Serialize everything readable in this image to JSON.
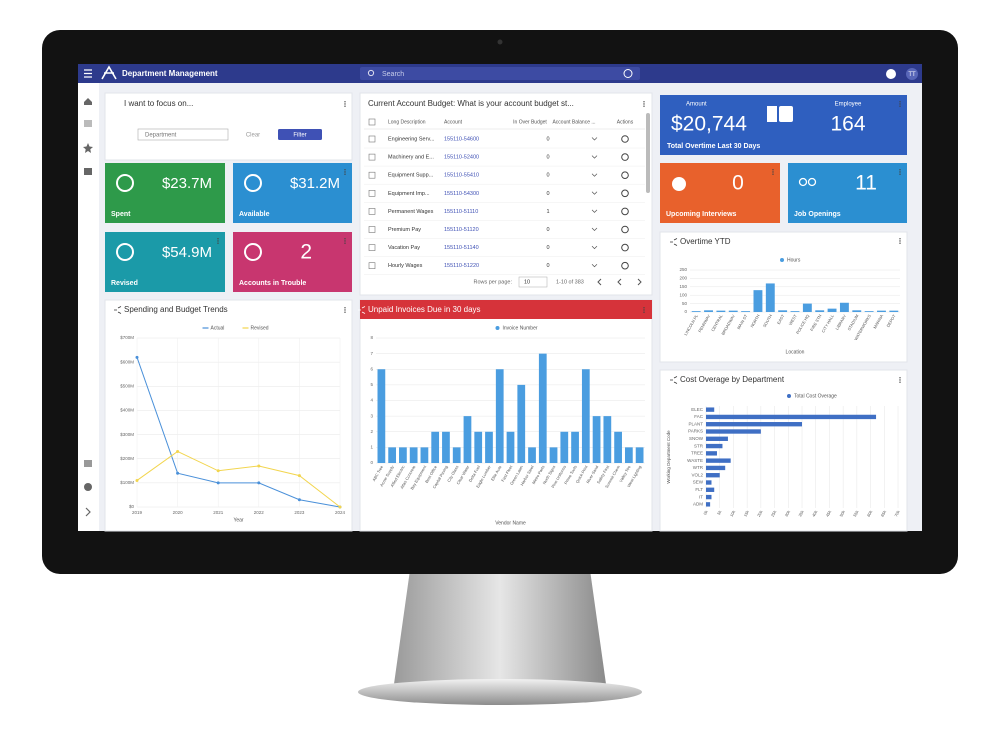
{
  "app": {
    "title": "Department Management",
    "search": "Search",
    "user": "TT"
  },
  "filter": {
    "title": "I want to focus on...",
    "dropdown": "Department",
    "clear": "Clear",
    "submit": "Filter"
  },
  "kpis": [
    {
      "value": "$23.7M",
      "label": "Spent"
    },
    {
      "value": "$31.2M",
      "label": "Available"
    },
    {
      "value": "$54.9M",
      "label": "Revised"
    },
    {
      "value": 2,
      "label": "Accounts in Trouble"
    }
  ],
  "overtime": {
    "amount_label": "Amount",
    "amount": "$20,744",
    "employee_label": "Employee",
    "employees": 164,
    "caption": "Total Overtime Last 30 Days"
  },
  "hiring": [
    {
      "value": 0,
      "label": "Upcoming Interviews"
    },
    {
      "value": 11,
      "label": "Job Openings"
    }
  ],
  "table": {
    "title": "Current Account Budget: What is your account budget st...",
    "columns": [
      "Long Description",
      "Account",
      "In Over Budget",
      "Account Balance ...",
      "Actions"
    ],
    "rows": [
      {
        "description": "Engineering Serv...",
        "account": "155110-54600",
        "over_budget": 0
      },
      {
        "description": "Machinery and E...",
        "account": "155110-52400",
        "over_budget": 0
      },
      {
        "description": "Equipment Supp...",
        "account": "155110-55410",
        "over_budget": 0
      },
      {
        "description": "Equipment Imp...",
        "account": "155110-54300",
        "over_budget": 0
      },
      {
        "description": "Permanent Wages",
        "account": "155110-51110",
        "over_budget": 1
      },
      {
        "description": "Premium Pay",
        "account": "155110-51120",
        "over_budget": 0
      },
      {
        "description": "Vacation Pay",
        "account": "155110-51140",
        "over_budget": 0
      },
      {
        "description": "Hourly Wages",
        "account": "155110-51220",
        "over_budget": 0
      }
    ],
    "footer": {
      "rows_per_page_label": "Rows per page:",
      "rows_per_page": 10,
      "range": "1-10 of 383"
    }
  },
  "chart_data": [
    {
      "type": "line",
      "title": "Spending and Budget Trends",
      "categories": [
        "2019",
        "2020",
        "2021",
        "2022",
        "2023",
        "2024"
      ],
      "series": [
        {
          "name": "Actual",
          "color": "#4a90d9",
          "values": [
            620,
            140,
            100,
            100,
            30,
            0
          ]
        },
        {
          "name": "Revised",
          "color": "#f2d54e",
          "values": [
            110,
            230,
            150,
            170,
            130,
            0
          ]
        }
      ],
      "ylim": [
        0,
        700
      ],
      "yticks": [
        {
          "value": 0,
          "label": "$0"
        },
        {
          "value": 100,
          "label": "$100M"
        },
        {
          "value": 200,
          "label": "$200M"
        },
        {
          "value": 300,
          "label": "$300M"
        },
        {
          "value": 400,
          "label": "$400M"
        },
        {
          "value": 500,
          "label": "$500M"
        },
        {
          "value": 600,
          "label": "$600M"
        },
        {
          "value": 700,
          "label": "$700M"
        }
      ],
      "x_label": "Year",
      "grid": true
    },
    {
      "type": "bar",
      "title": "Unpaid Invoices Due in 30 days",
      "categories": [
        "ABC Tree",
        "Acme Supply",
        "Allied Electric",
        "Atlas Concrete",
        "Bay Equipment",
        "Best Office",
        "Capital Paving",
        "City Glass",
        "Clear Water",
        "Delta Fuel",
        "Eagle Lumber",
        "Elite Auto",
        "Fast Fleet",
        "Green Lawn",
        "Harbor Steel",
        "Metro Parts",
        "North Signs",
        "Pine Uniforms",
        "Prime Tools",
        "Quick Print",
        "River Sand",
        "Safety First",
        "Summit Chem",
        "Valley Tire",
        "West Lighting"
      ],
      "series": [
        {
          "name": "Invoice Number",
          "color": "#4a9de0",
          "values": [
            6,
            1,
            1,
            1,
            1,
            2,
            2,
            1,
            3,
            2,
            2,
            6,
            2,
            5,
            1,
            7,
            1,
            2,
            2,
            6,
            3,
            3,
            2,
            1,
            1
          ]
        }
      ],
      "ylim": [
        0,
        8
      ],
      "yticks": [
        0,
        1,
        2,
        3,
        4,
        5,
        6,
        7,
        8
      ],
      "x_label": "Vendor Name",
      "grid": true
    },
    {
      "type": "bar",
      "title": "Overtime YTD",
      "categories": [
        "LINCOLN PL",
        "PENNWAY",
        "CENTRAL",
        "BROADWAY",
        "MAIN ST",
        "NORTH",
        "SOUTH",
        "EAST",
        "WEST",
        "POLICE HQ",
        "FIRE STN",
        "CITY HALL",
        "LIBRARY",
        "STADIUM",
        "WATERWORKS",
        "MARINA",
        "DEPOT"
      ],
      "series": [
        {
          "name": "Hours",
          "color": "#4a9de0",
          "values": [
            5,
            10,
            8,
            8,
            5,
            130,
            170,
            10,
            5,
            50,
            10,
            20,
            55,
            10,
            5,
            8,
            8
          ]
        }
      ],
      "ylim": [
        0,
        250
      ],
      "yticks": [
        0,
        50,
        100,
        150,
        200,
        250
      ],
      "x_label": "Location",
      "grid": true
    },
    {
      "type": "hbar",
      "title": "Cost Overage by Department",
      "categories": [
        "ELEC",
        "FAC",
        "PLANT",
        "PARKS",
        "SNOW",
        "STR",
        "TREE",
        "WASTE",
        "WTR",
        "VOL2",
        "SEW",
        "FLT",
        "IT",
        "ADM"
      ],
      "series": [
        {
          "name": "Total Cost Overage",
          "color": "#3f6fc4",
          "values": [
            3000,
            62000,
            35000,
            20000,
            8000,
            6000,
            4000,
            9000,
            7000,
            5000,
            2000,
            3000,
            2000,
            1500
          ]
        }
      ],
      "xlim": [
        0,
        70000
      ],
      "xticks": [
        {
          "value": 0,
          "label": "0k"
        },
        {
          "value": 5000,
          "label": "5k"
        },
        {
          "value": 10000,
          "label": "10k"
        },
        {
          "value": 15000,
          "label": "15k"
        },
        {
          "value": 20000,
          "label": "20k"
        },
        {
          "value": 25000,
          "label": "25k"
        },
        {
          "value": 30000,
          "label": "30k"
        },
        {
          "value": 35000,
          "label": "35k"
        },
        {
          "value": 40000,
          "label": "40k"
        },
        {
          "value": 45000,
          "label": "45k"
        },
        {
          "value": 50000,
          "label": "50k"
        },
        {
          "value": 55000,
          "label": "55k"
        },
        {
          "value": 60000,
          "label": "60k"
        },
        {
          "value": 65000,
          "label": "65k"
        },
        {
          "value": 70000,
          "label": "70k"
        }
      ],
      "y_label": "Working Department Code",
      "grid": true
    }
  ]
}
